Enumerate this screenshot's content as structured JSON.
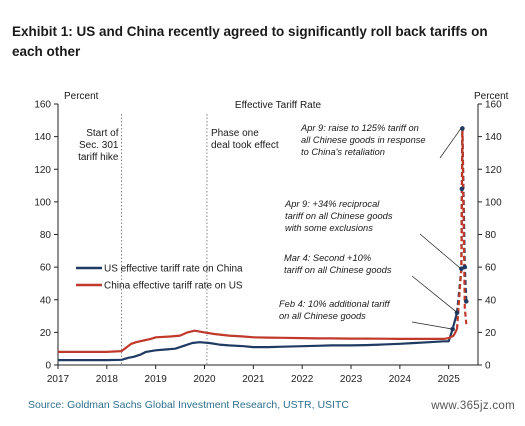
{
  "header": {
    "title": "Exhibit 1: US and China recently agreed to significantly roll back tariffs on each other"
  },
  "footer": {
    "source": "Source: Goldman Sachs Global Investment Research, USTR, USITC",
    "watermark": "www.365jz.com"
  },
  "chart_data": {
    "type": "line",
    "title": "Effective Tariff Rate",
    "ylabel_left": "Percent",
    "ylabel_right": "Percent",
    "ylim": [
      0,
      160
    ],
    "yticks": [
      0,
      20,
      40,
      60,
      80,
      100,
      120,
      140,
      160
    ],
    "xlim": [
      2017.0,
      2025.6
    ],
    "xticks": [
      2017,
      2018,
      2019,
      2020,
      2021,
      2022,
      2023,
      2024,
      2025
    ],
    "grid": false,
    "legend_position": "left-middle",
    "series": [
      {
        "name": "US effective tariff rate on China",
        "color": "#1f3b63",
        "x": [
          2017.0,
          2017.3,
          2017.6,
          2018.0,
          2018.3,
          2018.45,
          2018.55,
          2018.7,
          2018.8,
          2019.0,
          2019.2,
          2019.4,
          2019.6,
          2019.75,
          2019.9,
          2020.1,
          2020.3,
          2020.5,
          2020.8,
          2021.0,
          2021.3,
          2021.6,
          2022.0,
          2022.3,
          2022.6,
          2023.0,
          2023.3,
          2023.6,
          2024.0,
          2024.3,
          2024.6,
          2024.9,
          2025.0,
          2025.08,
          2025.17,
          2025.26,
          2025.27,
          2025.28,
          2025.33,
          2025.36
        ],
        "y": [
          3,
          3,
          3,
          3,
          3.2,
          4.5,
          5,
          6.5,
          8,
          9,
          9.5,
          10,
          12,
          13.5,
          14,
          13.5,
          12.5,
          12,
          11.5,
          11,
          11,
          11.2,
          11.5,
          11.8,
          12,
          12,
          12.2,
          12.5,
          13,
          13.5,
          14,
          14.5,
          14.5,
          22,
          32,
          59,
          108,
          145,
          60,
          39
        ]
      },
      {
        "name": "China effective tariff rate on US",
        "color": "#c0392b",
        "x": [
          2017.0,
          2017.3,
          2017.6,
          2018.0,
          2018.3,
          2018.5,
          2018.6,
          2018.75,
          2018.9,
          2019.0,
          2019.3,
          2019.5,
          2019.65,
          2019.8,
          2020.0,
          2020.2,
          2020.5,
          2020.8,
          2021.0,
          2021.3,
          2021.6,
          2022.0,
          2022.3,
          2022.6,
          2023.0,
          2023.3,
          2023.6,
          2024.0,
          2024.3,
          2024.6,
          2024.9,
          2025.0,
          2025.1,
          2025.17,
          2025.26,
          2025.27,
          2025.28,
          2025.33,
          2025.36
        ],
        "y": [
          8,
          8,
          8,
          8,
          8.5,
          13,
          14,
          15,
          16,
          17,
          17.5,
          18,
          20,
          21,
          20,
          19,
          18,
          17.5,
          17,
          16.8,
          16.7,
          16.5,
          16.3,
          16.3,
          16.2,
          16.2,
          16.1,
          16,
          16,
          16,
          16,
          16.5,
          18,
          22,
          60,
          108,
          145,
          35,
          25
        ]
      }
    ],
    "vlines": [
      {
        "x": 2018.3,
        "label": [
          "Start of",
          "Sec. 301",
          "tariff hike"
        ]
      },
      {
        "x": 2020.05,
        "label": [
          "Phase one",
          "deal took effect"
        ]
      }
    ],
    "annotations": [
      [
        "Apr 9: raise to 125% tariff on",
        "all Chinese goods in response",
        "to China's retaliation"
      ],
      [
        "Apr 9: +34% reciprocal",
        "tariff on all Chinese goods",
        "with some exclusions"
      ],
      [
        "Mar 4: Second +10%",
        "tariff on all Chinese goods"
      ],
      [
        "Feb 4: 10% additional tariff",
        "on all Chinese goods"
      ]
    ]
  }
}
